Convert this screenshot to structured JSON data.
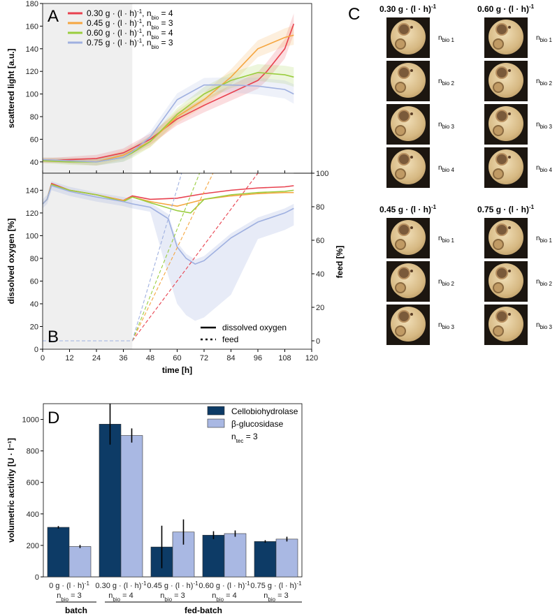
{
  "panel_labels": {
    "A": "A",
    "B": "B",
    "C": "C",
    "D": "D"
  },
  "chart_data": [
    {
      "id": "A",
      "type": "line",
      "xlabel": "time [h]",
      "ylabel": "scattered light [a.u.]",
      "xlim": [
        0,
        120
      ],
      "ylim": [
        30,
        180
      ],
      "xticks": [
        "0",
        "12",
        "24",
        "36",
        "48",
        "60",
        "72",
        "84",
        "96",
        "108",
        "120"
      ],
      "yticks": [
        "40",
        "60",
        "80",
        "100",
        "120",
        "140",
        "160",
        "180"
      ],
      "batch_phase_end": 40,
      "legend": [
        "0.30 g · (l · h)⁻¹, nbio = 4",
        "0.45 g · (l · h)⁻¹, nbio = 3",
        "0.60 g · (l · h)⁻¹, nbio = 4",
        "0.75 g · (l · h)⁻¹, nbio = 3"
      ],
      "series": [
        {
          "name": "0.30 g · (l · h)⁻¹, nbio = 4",
          "color": "#e8414f",
          "x": [
            0,
            12,
            24,
            36,
            40,
            48,
            60,
            72,
            84,
            96,
            100,
            108,
            112
          ],
          "y": [
            41,
            42,
            43,
            48,
            52,
            60,
            78,
            90,
            101,
            112,
            120,
            140,
            162
          ]
        },
        {
          "name": "0.45 g · (l · h)⁻¹, nbio = 3",
          "color": "#f5a640",
          "x": [
            0,
            12,
            24,
            36,
            40,
            48,
            60,
            72,
            84,
            96,
            108,
            112
          ],
          "y": [
            42,
            41,
            40,
            46,
            50,
            58,
            80,
            95,
            115,
            140,
            150,
            152
          ]
        },
        {
          "name": "0.60 g · (l · h)⁻¹, nbio = 4",
          "color": "#9acd3e",
          "x": [
            0,
            12,
            24,
            36,
            40,
            48,
            60,
            72,
            84,
            96,
            108,
            112
          ],
          "y": [
            41,
            40,
            40,
            44,
            48,
            58,
            82,
            100,
            112,
            119,
            117,
            115
          ]
        },
        {
          "name": "0.75 g · (l · h)⁻¹, nbio = 3",
          "color": "#9fb0e0",
          "x": [
            0,
            12,
            24,
            36,
            40,
            48,
            60,
            72,
            84,
            96,
            108,
            112
          ],
          "y": [
            42,
            41,
            40,
            44,
            49,
            62,
            95,
            108,
            108,
            107,
            104,
            100
          ]
        }
      ]
    },
    {
      "id": "B",
      "type": "line",
      "xlabel": "time [h]",
      "ylabel": "dissolved oxygen [%]",
      "y2label": "feed [%]",
      "xlim": [
        0,
        120
      ],
      "ylim": [
        0,
        155
      ],
      "y2lim": [
        -5,
        100
      ],
      "xticks": [
        "0",
        "12",
        "24",
        "36",
        "48",
        "60",
        "72",
        "84",
        "96",
        "108",
        "120"
      ],
      "yticks": [
        "0",
        "20",
        "40",
        "60",
        "80",
        "100",
        "120",
        "140"
      ],
      "y2ticks": [
        "0",
        "20",
        "40",
        "60",
        "80",
        "100"
      ],
      "legend": [
        "dissolved oxygen",
        "feed"
      ],
      "series": [
        {
          "name": "DO 0.30",
          "color": "#e8414f",
          "x": [
            0,
            2,
            4,
            12,
            24,
            36,
            40,
            48,
            60,
            72,
            84,
            96,
            108,
            112
          ],
          "y": [
            128,
            132,
            146,
            140,
            136,
            131,
            135,
            132,
            133,
            137,
            140,
            142,
            143,
            144
          ]
        },
        {
          "name": "DO 0.45",
          "color": "#f5a640",
          "x": [
            0,
            2,
            4,
            12,
            24,
            36,
            40,
            48,
            60,
            72,
            84,
            96,
            108,
            112
          ],
          "y": [
            128,
            132,
            145,
            140,
            136,
            131,
            134,
            130,
            126,
            132,
            135,
            137,
            138,
            138
          ]
        },
        {
          "name": "DO 0.60",
          "color": "#9acd3e",
          "x": [
            0,
            2,
            4,
            12,
            24,
            36,
            40,
            48,
            60,
            66,
            72,
            84,
            96,
            108,
            112
          ],
          "y": [
            128,
            132,
            145,
            140,
            136,
            130,
            134,
            129,
            122,
            120,
            132,
            136,
            138,
            139,
            140
          ]
        },
        {
          "name": "DO 0.75",
          "color": "#9fb0e0",
          "x": [
            0,
            2,
            4,
            12,
            24,
            36,
            40,
            48,
            56,
            60,
            64,
            68,
            72,
            84,
            96,
            108,
            112
          ],
          "y": [
            128,
            132,
            144,
            139,
            134,
            130,
            128,
            125,
            115,
            90,
            80,
            75,
            78,
            98,
            112,
            120,
            124
          ]
        },
        {
          "name": "feed 0.30",
          "color": "#e8414f",
          "x": [
            40,
            96
          ],
          "y": [
            0,
            100
          ]
        },
        {
          "name": "feed 0.45",
          "color": "#f5a640",
          "x": [
            40,
            76
          ],
          "y": [
            0,
            100
          ]
        },
        {
          "name": "feed 0.60",
          "color": "#9acd3e",
          "x": [
            40,
            70
          ],
          "y": [
            0,
            100
          ]
        },
        {
          "name": "feed 0.75",
          "color": "#9fb0e0",
          "x": [
            40,
            62
          ],
          "y": [
            0,
            100
          ]
        }
      ]
    },
    {
      "id": "D",
      "type": "bar",
      "ylabel": "volumetric activity [U · l⁻¹]",
      "ylim": [
        0,
        1100
      ],
      "yticks": [
        "0",
        "200",
        "400",
        "600",
        "800",
        "1000"
      ],
      "categories": [
        {
          "line1": "0 g · (l · h)⁻¹",
          "line2": "nbio = 3"
        },
        {
          "line1": "0.30 g · (l · h)⁻¹",
          "line2": "nbio = 4"
        },
        {
          "line1": "0.45 g · (l · h)⁻¹",
          "line2": "nbio = 3"
        },
        {
          "line1": "0.60 g · (l · h)⁻¹",
          "line2": "nbio = 4"
        },
        {
          "line1": "0.75 g · (l · h)⁻¹",
          "line2": "nbio = 3"
        }
      ],
      "groups": {
        "batch": "batch",
        "fed_batch": "fed-batch"
      },
      "legend": [
        "Cellobiohydrolase",
        "β-glucosidase",
        "ntec = 3"
      ],
      "series": [
        {
          "name": "Cellobiohydrolase",
          "color": "#0d3b66",
          "values": [
            315,
            970,
            190,
            265,
            225
          ],
          "errors": [
            8,
            130,
            135,
            25,
            8
          ]
        },
        {
          "name": "β-glucosidase",
          "color": "#a9b8e3",
          "values": [
            193,
            898,
            285,
            275,
            240
          ],
          "errors": [
            10,
            45,
            80,
            20,
            15
          ]
        }
      ]
    }
  ],
  "panel_C": {
    "groups": [
      {
        "title": "0.30 g · (l · h)⁻¹",
        "items": [
          "nbio 1",
          "nbio 2",
          "nbio 3",
          "nbio 4"
        ]
      },
      {
        "title": "0.60 g · (l · h)⁻¹",
        "items": [
          "nbio 1",
          "nbio 2",
          "nbio 3",
          "nbio 4"
        ]
      },
      {
        "title": "0.45 g · (l · h)⁻¹",
        "items": [
          "nbio 1",
          "nbio 2",
          "nbio 3"
        ]
      },
      {
        "title": "0.75 g · (l · h)⁻¹",
        "items": [
          "nbio 1",
          "nbio 2",
          "nbio 3"
        ]
      }
    ]
  }
}
